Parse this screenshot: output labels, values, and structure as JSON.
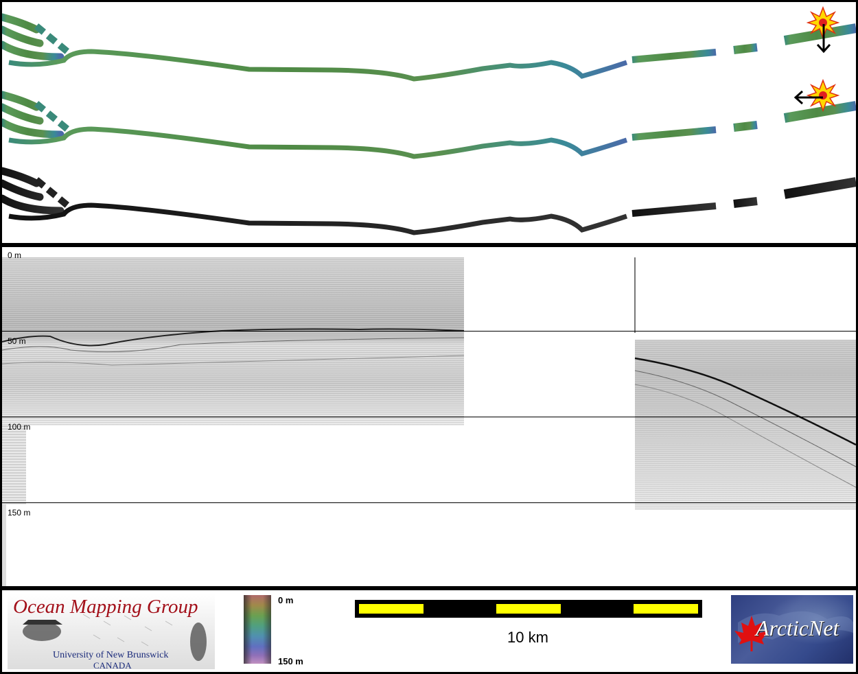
{
  "profile": {
    "depth_labels": [
      "0 m",
      "50 m",
      "100 m",
      "150 m"
    ]
  },
  "footer": {
    "logo": {
      "title": "Ocean Mapping Group",
      "university": "University of New Brunswick",
      "country": "CANADA"
    },
    "colorbar": {
      "top_label": "0 m",
      "bottom_label": "150 m"
    },
    "scalebar": {
      "label": "10 km"
    },
    "partner_logo": {
      "text": "ArcticNet"
    }
  },
  "colors": {
    "track_green": "#5a8a4a",
    "track_teal": "#4a8a8a",
    "track_blue": "#4a70a0",
    "track_dark": "#222222",
    "scale_yellow": "#ffff00",
    "logo_red": "#a3101a",
    "logo_blue": "#1a2a7a"
  },
  "icons": [
    "sun-light-icon-vertical",
    "sun-light-icon-horizontal",
    "arrow-down-icon",
    "arrow-left-icon",
    "maple-leaf-icon"
  ]
}
